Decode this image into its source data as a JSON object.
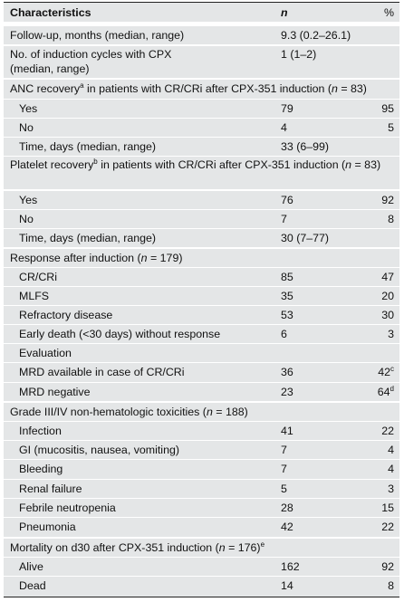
{
  "header": {
    "characteristics": "Characteristics",
    "n": "n",
    "pct": "%"
  },
  "rows": [
    {
      "label": "Follow-up, months (median, range)",
      "n": "9.3 (0.2–26.1)",
      "pct": ""
    },
    {
      "label": "No. of induction cycles with CPX",
      "label2": "(median, range)",
      "n": "1 (1–2)",
      "pct": ""
    },
    {
      "section_pre": "ANC recovery",
      "section_sup": "a",
      "section_post": " in patients with CR/CRi after CPX-351 induction (",
      "section_n": "n",
      "section_end": " = 83)"
    },
    {
      "label": "Yes",
      "n": "79",
      "pct": "95"
    },
    {
      "label": "No",
      "n": "4",
      "pct": "5"
    },
    {
      "label": "Time, days (median, range)",
      "n": "33 (6–99)",
      "pct": ""
    },
    {
      "section_pre": "Platelet recovery",
      "section_sup": "b",
      "section_post": " in patients with CR/CRi after CPX-351 induction (",
      "section_n": "n",
      "section_end": " = 83)"
    },
    {
      "label": "Yes",
      "n": "76",
      "pct": "92"
    },
    {
      "label": "No",
      "n": "7",
      "pct": "8"
    },
    {
      "label": "Time, days (median, range)",
      "n": "30 (7–77)",
      "pct": ""
    },
    {
      "section_pre": "Response after induction (",
      "section_n": "n",
      "section_end": " = 179)"
    },
    {
      "label": "CR/CRi",
      "n": "85",
      "pct": "47"
    },
    {
      "label": "MLFS",
      "n": "35",
      "pct": "20"
    },
    {
      "label": "Refractory disease",
      "n": "53",
      "pct": "30"
    },
    {
      "label": "Early death (<30 days) without response",
      "n": "6",
      "pct": "3"
    },
    {
      "label": "Evaluation",
      "n": "",
      "pct": ""
    },
    {
      "label": "MRD available in case of CR/CRi",
      "n": "36",
      "pct": "42",
      "pct_sup": "c"
    },
    {
      "label": "MRD negative",
      "n": "23",
      "pct": "64",
      "pct_sup": "d"
    },
    {
      "section_pre": "Grade III/IV non-hematologic toxicities (",
      "section_n": "n",
      "section_end": " = 188)"
    },
    {
      "label": "Infection",
      "n": "41",
      "pct": "22"
    },
    {
      "label": "GI (mucositis, nausea, vomiting)",
      "n": "7",
      "pct": "4"
    },
    {
      "label": "Bleeding",
      "n": "7",
      "pct": "4"
    },
    {
      "label": "Renal failure",
      "n": "5",
      "pct": "3"
    },
    {
      "label": "Febrile neutropenia",
      "n": "28",
      "pct": "15"
    },
    {
      "label": "Pneumonia",
      "n": "42",
      "pct": "22"
    },
    {
      "section_pre": "Mortality on d30 after CPX-351 induction (",
      "section_n": "n",
      "section_end": " = 176)",
      "section_sup_end": "e"
    },
    {
      "label": "Alive",
      "n": "162",
      "pct": "92"
    },
    {
      "label": "Dead",
      "n": "14",
      "pct": "8"
    }
  ]
}
